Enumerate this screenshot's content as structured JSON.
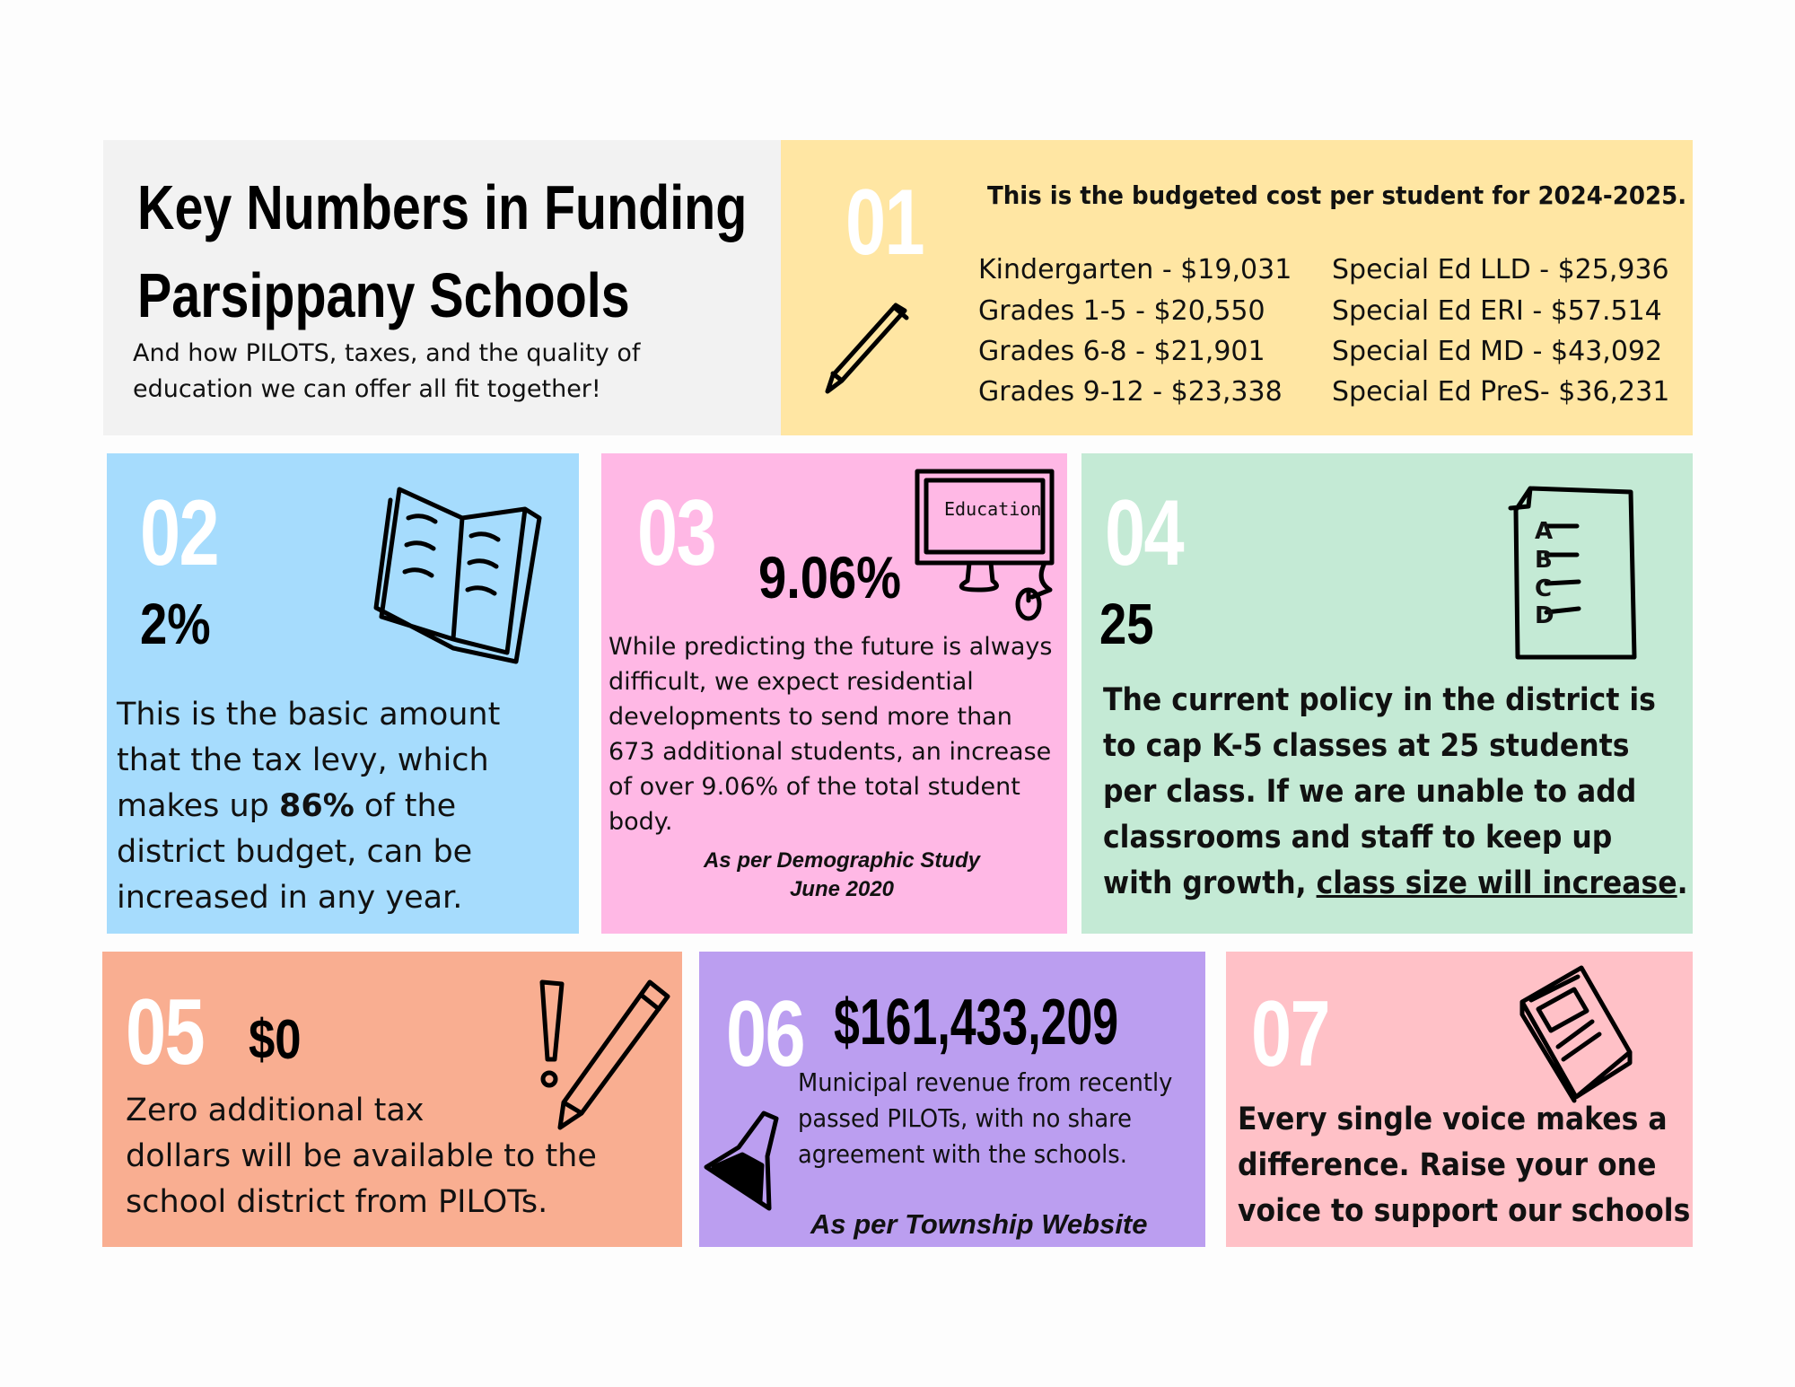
{
  "title": {
    "line1": "Key Numbers in Funding",
    "line2": "Parsippany Schools",
    "subtitle_lines": [
      "And how PILOTS, taxes, and the quality of",
      "education we can offer all fit together!"
    ]
  },
  "colors": {
    "title_bg": "#f2f2f2",
    "card1": "#ffe6a3",
    "card2": "#a6dcfd",
    "card3": "#ffb8e5",
    "card4": "#c4ead5",
    "card5": "#f9ae91",
    "card6": "#bb9ef0",
    "card7": "#ffc1c7"
  },
  "cards": [
    {
      "number": "01",
      "icon": "pen-icon",
      "heading": "This is the budgeted cost per student for 2024-2025.",
      "col1": [
        "Kindergarten - $19,031",
        "Grades 1-5 - $20,550",
        "Grades 6-8 - $21,901",
        "Grades 9-12 - $23,338"
      ],
      "col2": [
        "Special Ed LLD - $25,936",
        "Special Ed ERI - $57.514",
        "Special Ed MD - $43,092",
        "Special Ed PreS- $36,231"
      ]
    },
    {
      "number": "02",
      "icon": "open-book-icon",
      "stat": "2%",
      "lines": [
        "This is the basic amount",
        "that the tax levy, which",
        "makes up ",
        "86%",
        " of the",
        "district budget, can be",
        "increased in any year."
      ]
    },
    {
      "number": "03",
      "icon": "computer-icon",
      "icon_text": "Education",
      "stat": "9.06%",
      "lines": [
        "While predicting the future is always",
        "difficult, we expect residential",
        "developments to send more than",
        "673 additional students, an increase",
        "of over 9.06% of the total student",
        "body."
      ],
      "citation": [
        "As per Demographic Study",
        "June 2020"
      ]
    },
    {
      "number": "04",
      "icon": "abcd-checklist-icon",
      "checklist": [
        "A",
        "B",
        "C",
        "D"
      ],
      "stat": "25",
      "lines": [
        "The current policy in the district is",
        "to cap K-5 classes at 25 students",
        "per class. If we are unable to add",
        "classrooms and staff to keep up",
        "with growth, ",
        "class size will increase",
        "."
      ]
    },
    {
      "number": "05",
      "icon": "pencil-exclamation-icon",
      "stat": "$0",
      "lines": [
        "Zero additional tax",
        "dollars will be available to the",
        "school district from PILOTs."
      ]
    },
    {
      "number": "06",
      "icon": "flask-icon",
      "stat": "$161,433,209",
      "lines": [
        "Municipal revenue from recently",
        "passed PILOTs, with no share",
        "agreement with the schools."
      ],
      "citation": "As per Township Website"
    },
    {
      "number": "07",
      "icon": "closed-book-icon",
      "lines": [
        "Every single voice makes a",
        "difference. Raise your one",
        "voice to support our schools"
      ]
    }
  ]
}
